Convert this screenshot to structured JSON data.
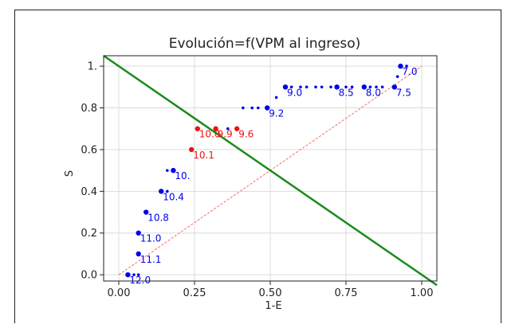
{
  "chart_data": {
    "type": "scatter",
    "title": "Evolución=f(VPM al ingreso)",
    "xlabel": "1-E",
    "ylabel": "S",
    "xlim": [
      -0.05,
      1.05
    ],
    "ylim": [
      -0.03,
      1.05
    ],
    "x_ticks": [
      {
        "v": 0.0,
        "label": "0.00"
      },
      {
        "v": 0.25,
        "label": "0.25"
      },
      {
        "v": 0.5,
        "label": "0.50"
      },
      {
        "v": 0.75,
        "label": "0.75"
      },
      {
        "v": 1.0,
        "label": "1.00"
      }
    ],
    "y_ticks": [
      {
        "v": 0.0,
        "label": "0.0"
      },
      {
        "v": 0.2,
        "label": "0.2"
      },
      {
        "v": 0.4,
        "label": "0.4"
      },
      {
        "v": 0.6,
        "label": "0.6"
      },
      {
        "v": 0.8,
        "label": "0.8"
      },
      {
        "v": 1.0,
        "label": "1."
      }
    ],
    "grid": true,
    "colors": {
      "blue": "#0000ee",
      "red": "#ee1111",
      "green": "#1a8a1a",
      "diag": "#ff6666"
    },
    "roc_points": [
      {
        "x": 0.03,
        "y": 0.0,
        "c": "blue",
        "label": "12.0",
        "big": true
      },
      {
        "x": 0.05,
        "y": 0.0,
        "c": "blue",
        "big": false
      },
      {
        "x": 0.065,
        "y": 0.0,
        "c": "blue",
        "big": false
      },
      {
        "x": 0.065,
        "y": 0.1,
        "c": "blue",
        "label": "11.1",
        "big": true
      },
      {
        "x": 0.065,
        "y": 0.2,
        "c": "blue",
        "label": "11.0",
        "big": true
      },
      {
        "x": 0.09,
        "y": 0.3,
        "c": "blue",
        "label": "10.8",
        "big": true
      },
      {
        "x": 0.14,
        "y": 0.4,
        "c": "blue",
        "label": "10.4",
        "big": true
      },
      {
        "x": 0.16,
        "y": 0.4,
        "c": "blue",
        "big": false
      },
      {
        "x": 0.16,
        "y": 0.5,
        "c": "blue",
        "big": false
      },
      {
        "x": 0.18,
        "y": 0.5,
        "c": "blue",
        "label": "10.",
        "big": true
      },
      {
        "x": 0.24,
        "y": 0.6,
        "c": "red",
        "label": "10.1",
        "big": true
      },
      {
        "x": 0.26,
        "y": 0.7,
        "c": "red",
        "label": "10.0",
        "big": true
      },
      {
        "x": 0.32,
        "y": 0.7,
        "c": "red",
        "label": "9.9",
        "big": true
      },
      {
        "x": 0.39,
        "y": 0.7,
        "c": "red",
        "label": "9.6",
        "big": true
      },
      {
        "x": 0.36,
        "y": 0.7,
        "c": "blue",
        "big": false
      },
      {
        "x": 0.41,
        "y": 0.8,
        "c": "blue",
        "big": false
      },
      {
        "x": 0.44,
        "y": 0.8,
        "c": "blue",
        "big": false
      },
      {
        "x": 0.46,
        "y": 0.8,
        "c": "blue",
        "big": false
      },
      {
        "x": 0.49,
        "y": 0.8,
        "c": "blue",
        "label": "9.2",
        "big": true
      },
      {
        "x": 0.52,
        "y": 0.85,
        "c": "blue",
        "big": false
      },
      {
        "x": 0.55,
        "y": 0.9,
        "c": "blue",
        "label": "9.0",
        "big": true
      },
      {
        "x": 0.57,
        "y": 0.9,
        "c": "blue",
        "big": false
      },
      {
        "x": 0.6,
        "y": 0.9,
        "c": "blue",
        "big": false
      },
      {
        "x": 0.62,
        "y": 0.9,
        "c": "blue",
        "big": false
      },
      {
        "x": 0.65,
        "y": 0.9,
        "c": "blue",
        "big": false
      },
      {
        "x": 0.67,
        "y": 0.9,
        "c": "blue",
        "big": false
      },
      {
        "x": 0.7,
        "y": 0.9,
        "c": "blue",
        "big": false
      },
      {
        "x": 0.72,
        "y": 0.9,
        "c": "blue",
        "label": "8.5",
        "big": true
      },
      {
        "x": 0.75,
        "y": 0.9,
        "c": "blue",
        "big": false
      },
      {
        "x": 0.77,
        "y": 0.9,
        "c": "blue",
        "big": false
      },
      {
        "x": 0.81,
        "y": 0.9,
        "c": "blue",
        "label": "8.0",
        "big": true
      },
      {
        "x": 0.83,
        "y": 0.9,
        "c": "blue",
        "big": false
      },
      {
        "x": 0.85,
        "y": 0.9,
        "c": "blue",
        "big": false
      },
      {
        "x": 0.87,
        "y": 0.9,
        "c": "blue",
        "big": false
      },
      {
        "x": 0.91,
        "y": 0.9,
        "c": "blue",
        "label": "7.5",
        "big": true
      },
      {
        "x": 0.92,
        "y": 0.95,
        "c": "blue",
        "big": false
      },
      {
        "x": 0.93,
        "y": 1.0,
        "c": "blue",
        "label": "7.0",
        "big": true
      },
      {
        "x": 0.95,
        "y": 1.0,
        "c": "blue",
        "big": false
      }
    ],
    "diagonal_line": [
      [
        0.0,
        0.0
      ],
      [
        1.0,
        1.0
      ]
    ],
    "green_line": [
      [
        -0.05,
        1.05
      ],
      [
        1.05,
        -0.05
      ]
    ]
  }
}
